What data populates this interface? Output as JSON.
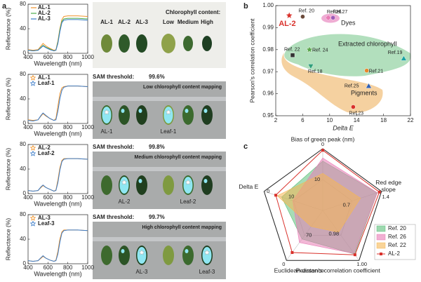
{
  "figure": {
    "panel_labels": [
      "a",
      "b",
      "c"
    ],
    "photos": [
      {
        "labels": [
          "AL-1",
          "AL-2",
          "AL-3"
        ],
        "title": "Chlorophyll content:",
        "levels": [
          "Low",
          "Medium",
          "High"
        ]
      },
      {
        "threshold_label": "SAM threshold:",
        "threshold": "99.6%",
        "title": "Low chlorophyll content mapping",
        "labels": [
          "AL-1",
          "Leaf-1"
        ]
      },
      {
        "threshold_label": "SAM threshold:",
        "threshold": "99.8%",
        "title": "Medium chlorophyll content mapping",
        "labels": [
          "AL-2",
          "Leaf-2"
        ]
      },
      {
        "threshold_label": "SAM threshold:",
        "threshold": "99.7%",
        "title": "High chlorophyll content mapping",
        "labels": [
          "AL-3",
          "Leaf-3"
        ]
      }
    ]
  },
  "chart_data": [
    {
      "type": "line",
      "xlabel": "Wavelength (nm)",
      "ylabel": "Reflectance (%)",
      "x": [
        400,
        450,
        500,
        530,
        550,
        580,
        620,
        660,
        680,
        700,
        720,
        740,
        760,
        800,
        900,
        1000
      ],
      "series": [
        {
          "name": "AL-1",
          "color": "#f0932b",
          "marker": "line",
          "values": [
            6,
            5,
            6,
            12,
            16,
            12,
            8,
            5,
            6,
            20,
            40,
            55,
            60,
            61,
            61,
            60
          ]
        },
        {
          "name": "AL-2",
          "color": "#4cae4c",
          "marker": "line",
          "values": [
            5,
            4,
            5,
            10,
            13,
            10,
            7,
            4,
            5,
            18,
            38,
            52,
            56,
            57,
            57,
            56
          ]
        },
        {
          "name": "AL-3",
          "color": "#3a7bc8",
          "marker": "line",
          "values": [
            5,
            4,
            5,
            9,
            12,
            9,
            6,
            4,
            5,
            16,
            35,
            50,
            54,
            55,
            55,
            54
          ]
        }
      ],
      "xlim": [
        400,
        1000
      ],
      "xticks": [
        400,
        600,
        800,
        1000
      ],
      "ylim": [
        0,
        80
      ],
      "yticks": [
        0,
        40,
        80
      ],
      "legend": "upper left"
    },
    {
      "type": "line",
      "xlabel": "Wavelength (nm)",
      "ylabel": "Reflectance (%)",
      "x": [
        400,
        450,
        500,
        530,
        550,
        580,
        620,
        660,
        680,
        700,
        720,
        740,
        760,
        800,
        900,
        1000
      ],
      "series": [
        {
          "name": "AL-1",
          "color": "#f0932b",
          "marker": "star",
          "values": [
            6,
            5,
            6,
            12,
            16,
            12,
            8,
            5,
            8,
            28,
            48,
            58,
            60,
            61,
            61,
            60
          ]
        },
        {
          "name": "Leaf-1",
          "color": "#3a7bc8",
          "marker": "star",
          "values": [
            5,
            4,
            6,
            13,
            17,
            13,
            8,
            5,
            6,
            20,
            40,
            54,
            59,
            61,
            61,
            60
          ]
        }
      ],
      "xlim": [
        400,
        1000
      ],
      "xticks": [
        400,
        600,
        800,
        1000
      ],
      "ylim": [
        0,
        80
      ],
      "yticks": [
        0,
        40,
        80
      ],
      "legend": "upper left"
    },
    {
      "type": "line",
      "xlabel": "Wavelength (nm)",
      "ylabel": "Reflectance (%)",
      "x": [
        400,
        450,
        500,
        530,
        550,
        580,
        620,
        660,
        680,
        700,
        720,
        740,
        760,
        800,
        900,
        1000
      ],
      "series": [
        {
          "name": "AL-2",
          "color": "#f0932b",
          "marker": "star",
          "values": [
            5,
            4,
            5,
            10,
            13,
            10,
            7,
            4,
            6,
            22,
            42,
            54,
            57,
            57,
            57,
            56
          ]
        },
        {
          "name": "Leaf-2",
          "color": "#3a7bc8",
          "marker": "star",
          "values": [
            5,
            4,
            5,
            11,
            14,
            10,
            7,
            4,
            5,
            18,
            38,
            52,
            56,
            57,
            57,
            56
          ]
        }
      ],
      "xlim": [
        400,
        1000
      ],
      "xticks": [
        400,
        600,
        800,
        1000
      ],
      "ylim": [
        0,
        80
      ],
      "yticks": [
        0,
        40,
        80
      ],
      "legend": "upper left"
    },
    {
      "type": "line",
      "xlabel": "Wavelength (nm)",
      "ylabel": "Reflectance (%)",
      "x": [
        400,
        450,
        500,
        530,
        550,
        580,
        620,
        660,
        680,
        700,
        720,
        740,
        760,
        800,
        900,
        1000
      ],
      "series": [
        {
          "name": "AL-3",
          "color": "#f0932b",
          "marker": "star",
          "values": [
            5,
            4,
            5,
            9,
            12,
            9,
            6,
            4,
            6,
            20,
            40,
            52,
            55,
            55,
            55,
            54
          ]
        },
        {
          "name": "Leaf-3",
          "color": "#3a7bc8",
          "marker": "star",
          "values": [
            5,
            4,
            5,
            10,
            13,
            9,
            6,
            4,
            5,
            16,
            35,
            50,
            54,
            55,
            55,
            54
          ]
        }
      ],
      "xlim": [
        400,
        1000
      ],
      "xticks": [
        400,
        600,
        800,
        1000
      ],
      "ylim": [
        0,
        80
      ],
      "yticks": [
        0,
        40,
        80
      ],
      "legend": "upper left"
    },
    {
      "type": "scatter",
      "xlabel": "Delta E",
      "ylabel": "Pearson's correlation coefficient",
      "regions": [
        {
          "label": "Dyes",
          "color": "#e05aa8"
        },
        {
          "label": "Extracted chlorophyll",
          "color": "#3fae5a"
        },
        {
          "label": "Pigments",
          "color": "#e89a2c"
        }
      ],
      "series": [
        {
          "name": "AL-2",
          "color": "#d9312b",
          "marker": "star",
          "x": [
            4.0
          ],
          "values": [
            0.9955
          ]
        },
        {
          "name": "Ref. 20",
          "color": "#6b4a3a",
          "marker": "circle",
          "x": [
            6.0
          ],
          "values": [
            0.995
          ]
        },
        {
          "name": "Ref.26",
          "color": "#e87bb5",
          "marker": "diamond",
          "x": [
            9.8
          ],
          "values": [
            0.9945
          ]
        },
        {
          "name": "Ref.27",
          "color": "#9b59b6",
          "marker": "circle",
          "x": [
            10.5
          ],
          "values": [
            0.9945
          ]
        },
        {
          "name": "Ref. 22",
          "color": "#333333",
          "marker": "square",
          "x": [
            4.5
          ],
          "values": [
            0.9775
          ]
        },
        {
          "name": "Ref. 24",
          "color": "#5aa64a",
          "marker": "star",
          "x": [
            7.0
          ],
          "values": [
            0.98
          ]
        },
        {
          "name": "Ref.18",
          "color": "#2f9f7a",
          "marker": "triangle-down",
          "x": [
            7.2
          ],
          "values": [
            0.9725
          ]
        },
        {
          "name": "Ref.19",
          "color": "#1aa3a3",
          "marker": "triangle",
          "x": [
            21.0
          ],
          "values": [
            0.976
          ]
        },
        {
          "name": "Ref.21",
          "color": "#e8862a",
          "marker": "circle",
          "x": [
            15.5
          ],
          "values": [
            0.9705
          ]
        },
        {
          "name": "Ref.25",
          "color": "#2f5fb3",
          "marker": "triangle",
          "x": [
            15.8
          ],
          "values": [
            0.9635
          ]
        },
        {
          "name": "Ref.23",
          "color": "#d9312b",
          "marker": "circle",
          "x": [
            13.5
          ],
          "values": [
            0.954
          ]
        }
      ],
      "xlim": [
        2,
        22
      ],
      "xticks": [
        2,
        6,
        10,
        14,
        18,
        22
      ],
      "ylim": [
        0.95,
        1.0
      ],
      "yticks": [
        0.95,
        0.96,
        0.97,
        0.98,
        0.99,
        {
          "value": 1.0,
          "label": "1.00"
        }
      ]
    },
    {
      "type": "radar",
      "axes": [
        {
          "label": "Bias of green peak (nm)",
          "range": [
            20,
            0
          ],
          "ticks": [
            10,
            0
          ]
        },
        {
          "label": "Red edge slope",
          "range": [
            0,
            1.4
          ],
          "ticks": [
            0.7,
            1.4
          ]
        },
        {
          "label": "Pearson's correlation coefficient",
          "range": [
            0.96,
            1.0
          ],
          "ticks": [
            0.98,
            {
              "value": 1.0,
              "label": "1.00"
            }
          ]
        },
        {
          "label": "Euclidean  distance",
          "range": [
            140,
            0
          ],
          "ticks": [
            70,
            0
          ]
        },
        {
          "label": "Delta E",
          "range": [
            20,
            0
          ],
          "ticks": [
            10,
            0
          ]
        }
      ],
      "series": [
        {
          "name": "Ref. 20",
          "color": "#5cbf7a",
          "style": "area",
          "values": [
            4,
            1.3,
            0.995,
            60,
            6
          ]
        },
        {
          "name": "Ref. 26",
          "color": "#e87bb5",
          "style": "area",
          "values": [
            3,
            1.3,
            0.9945,
            50,
            9.8
          ]
        },
        {
          "name": "Ref. 22",
          "color": "#f5b754",
          "style": "area",
          "values": [
            8,
            0.9,
            0.9775,
            95,
            4.5
          ]
        },
        {
          "name": "AL-2",
          "color": "#d9312b",
          "style": "line",
          "values": [
            0.5,
            1.35,
            0.9955,
            22,
            4
          ]
        }
      ],
      "legend": "lower right"
    }
  ]
}
